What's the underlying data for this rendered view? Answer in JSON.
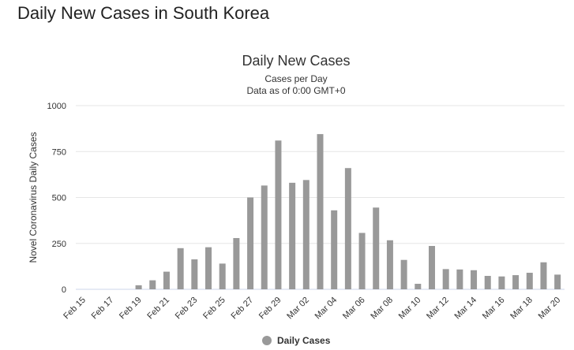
{
  "page": {
    "heading": "Daily New Cases in South Korea"
  },
  "chart_data": {
    "type": "bar",
    "title": "Daily New Cases",
    "subtitle_lines": [
      "Cases per Day",
      "Data as of 0:00 GMT+0"
    ],
    "ylabel": "Novel Coronavirus Daily Cases",
    "xlabel": "",
    "ylim": [
      0,
      1000
    ],
    "yticks": [
      0,
      250,
      500,
      750,
      1000
    ],
    "grid": true,
    "legend_placement": "bottom-center",
    "bar_color": "#999999",
    "categories": [
      "Feb 15",
      "Feb 16",
      "Feb 17",
      "Feb 18",
      "Feb 19",
      "Feb 20",
      "Feb 21",
      "Feb 22",
      "Feb 23",
      "Feb 24",
      "Feb 25",
      "Feb 26",
      "Feb 27",
      "Feb 28",
      "Feb 29",
      "Mar 01",
      "Mar 02",
      "Mar 03",
      "Mar 04",
      "Mar 05",
      "Mar 06",
      "Mar 07",
      "Mar 08",
      "Mar 09",
      "Mar 10",
      "Mar 11",
      "Mar 12",
      "Mar 13",
      "Mar 14",
      "Mar 15",
      "Mar 16",
      "Mar 17",
      "Mar 18",
      "Mar 19",
      "Mar 20"
    ],
    "tick_labels": [
      "Feb 15",
      "Feb 17",
      "Feb 19",
      "Feb 21",
      "Feb 23",
      "Feb 25",
      "Feb 27",
      "Feb 29",
      "Mar 02",
      "Mar 04",
      "Mar 06",
      "Mar 08",
      "Mar 10",
      "Mar 12",
      "Mar 14",
      "Mar 16",
      "Mar 18",
      "Mar 20"
    ],
    "series": [
      {
        "name": "Daily Cases",
        "values": [
          0,
          0,
          0,
          0,
          22,
          49,
          96,
          224,
          163,
          229,
          140,
          279,
          500,
          565,
          810,
          580,
          595,
          845,
          430,
          660,
          307,
          445,
          267,
          160,
          30,
          236,
          110,
          108,
          104,
          73,
          70,
          77,
          90,
          147,
          80
        ]
      }
    ]
  }
}
